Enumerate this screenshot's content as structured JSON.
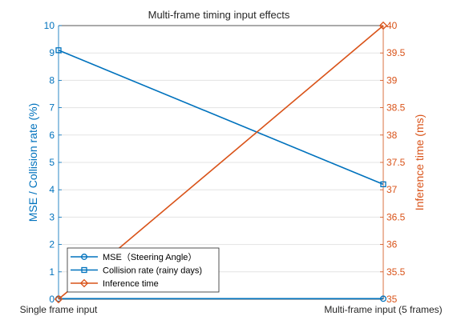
{
  "chart_data": {
    "type": "line",
    "title": "Multi-frame timing input effects",
    "categories": [
      "Single frame input",
      "Multi-frame input (5 frames)"
    ],
    "ylabel_left": "MSE / Collision rate (%)",
    "ylabel_right": "Inference time (ms)",
    "ylim_left": [
      0,
      10
    ],
    "ylim_right": [
      35,
      40
    ],
    "yticks_left": [
      "0",
      "1",
      "2",
      "3",
      "4",
      "5",
      "6",
      "7",
      "8",
      "9",
      "10"
    ],
    "yticks_right": [
      "35",
      "35.5",
      "36",
      "36.5",
      "37",
      "37.5",
      "38",
      "38.5",
      "39",
      "39.5",
      "40"
    ],
    "grid": true,
    "legend_position": "bottom-left",
    "series": [
      {
        "name": "MSE（Steering Angle）",
        "axis": "left",
        "marker": "circle",
        "color": "#0072BD",
        "values": [
          0.02,
          0.02
        ]
      },
      {
        "name": "Collision rate (rainy days)",
        "axis": "left",
        "marker": "square",
        "color": "#0072BD",
        "values": [
          9.1,
          4.2
        ]
      },
      {
        "name": "Inference time",
        "axis": "right",
        "marker": "diamond",
        "color": "#D95319",
        "values": [
          35,
          40
        ]
      }
    ]
  }
}
